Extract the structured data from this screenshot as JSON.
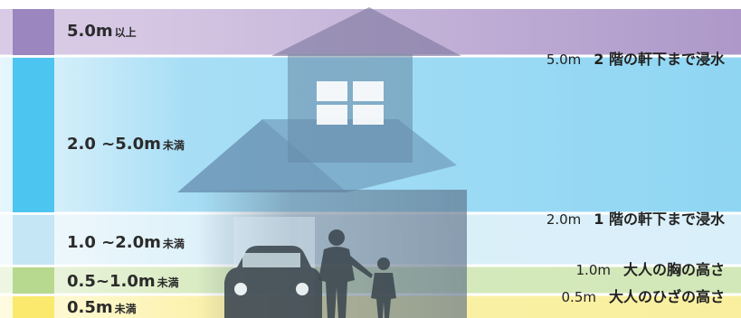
{
  "bands": [
    {
      "value": "5.0m",
      "suffix": "以上",
      "color": "#9b86bf"
    },
    {
      "value": "2.0 ~5.0m",
      "suffix": "未満",
      "color": "#4cc6f0"
    },
    {
      "value": "1.0 ~2.0m",
      "suffix": "未満",
      "color": "#c4e6f5"
    },
    {
      "value": "0.5~1.0m",
      "suffix": "未満",
      "color": "#b7d98f"
    },
    {
      "value": "0.5m",
      "suffix": "未満",
      "color": "#fbe96d"
    }
  ],
  "annotations": [
    {
      "height": "5.0m",
      "description": "2 階の軒下まで浸水"
    },
    {
      "height": "2.0m",
      "description": "1 階の軒下まで浸水"
    },
    {
      "height": "1.0m",
      "description": "大人の胸の高さ"
    },
    {
      "height": "0.5m",
      "description": "大人のひざの高さ"
    }
  ]
}
